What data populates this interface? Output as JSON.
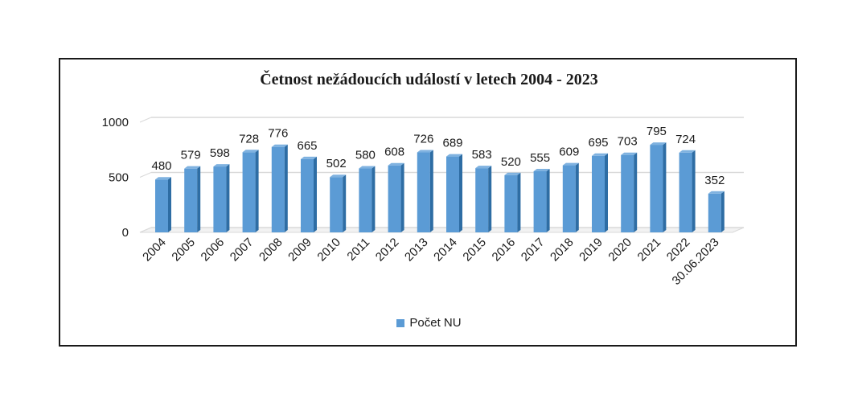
{
  "chart_data": {
    "type": "bar",
    "title": "Četnost nežádoucích událostí v letech 2004 - 2023",
    "categories": [
      "2004",
      "2005",
      "2006",
      "2007",
      "2008",
      "2009",
      "2010",
      "2011",
      "2012",
      "2013",
      "2014",
      "2015",
      "2016",
      "2017",
      "2018",
      "2019",
      "2020",
      "2021",
      "2022",
      "30.06.2023"
    ],
    "series": [
      {
        "name": "Počet NU",
        "values": [
          480,
          579,
          598,
          728,
          776,
          665,
          502,
          580,
          608,
          726,
          689,
          583,
          520,
          555,
          609,
          695,
          703,
          795,
          724,
          352
        ]
      }
    ],
    "yticks": [
      "0",
      "500",
      "1000"
    ],
    "ylim": [
      0,
      1000
    ],
    "grid": true,
    "legend_position": "bottom",
    "data_labels": true,
    "bar_color": "#5b9bd5",
    "bar_shade_color": "#2e6da4",
    "bar_top_color": "#7fb2e0"
  }
}
